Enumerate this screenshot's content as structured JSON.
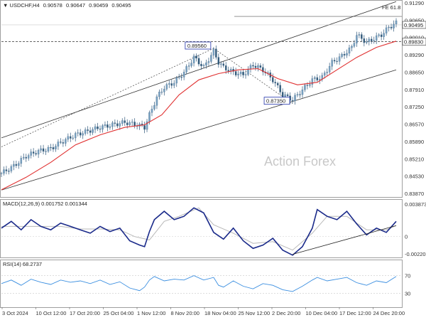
{
  "chart_data": [
    {
      "type": "candlestick",
      "symbol_timeframe": "USDCHF,H4",
      "ohlc_header": [
        "0.90578",
        "0.90647",
        "0.90459",
        "0.90495"
      ],
      "watermark": "Action Forex",
      "ylim": [
        0.8367,
        0.9141
      ],
      "y_ticks": [
        "0.91290",
        "0.90650",
        "0.90010",
        "0.89290",
        "0.88650",
        "0.87910",
        "0.87250",
        "0.86570",
        "0.85890",
        "0.85210",
        "0.84530",
        "0.83870"
      ],
      "x_ticks": [
        "3 Oct 2024",
        "10 Oct 12:00",
        "17 Oct 20:00",
        "25 Oct 04:00",
        "1 Nov 12:00",
        "8 Nov 20:00",
        "18 Nov 04:00",
        "25 Nov 12:00",
        "2 Dec 20:00",
        "10 Dec 04:00",
        "17 Dec 12:00",
        "24 Dec 20:00"
      ],
      "current_price_tag": "0.90495",
      "level_tag": "0.89830",
      "level_value": 0.8983,
      "fib_label": "FE 61.8",
      "fib_value": 0.9084,
      "annotations": [
        {
          "label": "0.89560",
          "value": 0.8956,
          "x_index": 86
        },
        {
          "label": "0.87350",
          "value": 0.8735,
          "x_index": 118
        }
      ],
      "close_path": [
        [
          0,
          0.8456
        ],
        [
          5,
          0.8485
        ],
        [
          10,
          0.8525
        ],
        [
          15,
          0.8545
        ],
        [
          20,
          0.8555
        ],
        [
          25,
          0.8585
        ],
        [
          30,
          0.861
        ],
        [
          35,
          0.8625
        ],
        [
          40,
          0.864
        ],
        [
          45,
          0.865
        ],
        [
          50,
          0.866
        ],
        [
          55,
          0.865
        ],
        [
          58,
          0.864
        ],
        [
          60,
          0.869
        ],
        [
          63,
          0.876
        ],
        [
          66,
          0.88
        ],
        [
          70,
          0.882
        ],
        [
          74,
          0.886
        ],
        [
          78,
          0.892
        ],
        [
          82,
          0.888
        ],
        [
          86,
          0.8945
        ],
        [
          88,
          0.89
        ],
        [
          90,
          0.888
        ],
        [
          94,
          0.886
        ],
        [
          98,
          0.885
        ],
        [
          102,
          0.889
        ],
        [
          106,
          0.887
        ],
        [
          110,
          0.883
        ],
        [
          114,
          0.877
        ],
        [
          118,
          0.875
        ],
        [
          122,
          0.879
        ],
        [
          126,
          0.883
        ],
        [
          130,
          0.884
        ],
        [
          134,
          0.89
        ],
        [
          138,
          0.8925
        ],
        [
          142,
          0.896
        ],
        [
          144,
          0.901
        ],
        [
          146,
          0.8995
        ],
        [
          148,
          0.898
        ],
        [
          150,
          0.899
        ],
        [
          154,
          0.901
        ],
        [
          157,
          0.904
        ],
        [
          160,
          0.9058
        ]
      ],
      "moving_average_path": [
        [
          0,
          0.839
        ],
        [
          10,
          0.844
        ],
        [
          20,
          0.85
        ],
        [
          30,
          0.857
        ],
        [
          40,
          0.861
        ],
        [
          50,
          0.864
        ],
        [
          58,
          0.865
        ],
        [
          65,
          0.869
        ],
        [
          72,
          0.877
        ],
        [
          80,
          0.883
        ],
        [
          88,
          0.8855
        ],
        [
          96,
          0.887
        ],
        [
          104,
          0.8875
        ],
        [
          112,
          0.8835
        ],
        [
          120,
          0.881
        ],
        [
          128,
          0.882
        ],
        [
          136,
          0.887
        ],
        [
          144,
          0.892
        ],
        [
          152,
          0.896
        ],
        [
          160,
          0.8985
        ]
      ],
      "channel_upper": [
        [
          0,
          0.8598
        ],
        [
          160,
          0.9143
        ]
      ],
      "channel_lower": [
        [
          0,
          0.8389
        ],
        [
          160,
          0.887
        ]
      ],
      "dashed_line": [
        [
          0,
          0.8562
        ],
        [
          86,
          0.8956
        ],
        [
          118,
          0.8735
        ]
      ]
    },
    {
      "type": "line",
      "title": "MACD(12,26,9) 0.001752 0.001344",
      "ylim": [
        -0.0023,
        0.0041
      ],
      "y_ticks": [
        "0.003873",
        "0",
        "-0.002201"
      ],
      "series": [
        {
          "name": "MACD",
          "points": [
            [
              0,
              0.001
            ],
            [
              4,
              0.0018
            ],
            [
              8,
              0.0008
            ],
            [
              12,
              0.002
            ],
            [
              16,
              0.0012
            ],
            [
              20,
              0.0008
            ],
            [
              24,
              0.0016
            ],
            [
              28,
              0.0012
            ],
            [
              32,
              0.0008
            ],
            [
              36,
              0.0004
            ],
            [
              40,
              0.0012
            ],
            [
              44,
              0.0006
            ],
            [
              48,
              0.001
            ],
            [
              52,
              -0.0005
            ],
            [
              56,
              -0.001
            ],
            [
              58,
              -0.0012
            ],
            [
              60,
              0.0006
            ],
            [
              62,
              0.002
            ],
            [
              66,
              0.003
            ],
            [
              70,
              0.002
            ],
            [
              74,
              0.0024
            ],
            [
              78,
              0.0034
            ],
            [
              82,
              0.0028
            ],
            [
              86,
              0.0005
            ],
            [
              90,
              -0.0003
            ],
            [
              94,
              0.001
            ],
            [
              98,
              -0.0005
            ],
            [
              102,
              -0.0014
            ],
            [
              106,
              -0.001
            ],
            [
              110,
              -0.0002
            ],
            [
              114,
              -0.0016
            ],
            [
              118,
              -0.0022
            ],
            [
              122,
              -0.0012
            ],
            [
              126,
              0.001
            ],
            [
              128,
              0.0032
            ],
            [
              132,
              0.0024
            ],
            [
              136,
              0.002
            ],
            [
              140,
              0.003
            ],
            [
              144,
              0.0015
            ],
            [
              148,
              0.0002
            ],
            [
              152,
              0.001
            ],
            [
              156,
              0.0005
            ],
            [
              160,
              0.0018
            ]
          ]
        },
        {
          "name": "Signal",
          "points": [
            [
              0,
              0.0012
            ],
            [
              8,
              0.0012
            ],
            [
              16,
              0.0012
            ],
            [
              24,
              0.0012
            ],
            [
              32,
              0.0009
            ],
            [
              40,
              0.0009
            ],
            [
              48,
              0.0008
            ],
            [
              54,
              0.0
            ],
            [
              60,
              -0.0004
            ],
            [
              66,
              0.0018
            ],
            [
              72,
              0.0024
            ],
            [
              80,
              0.0034
            ],
            [
              86,
              0.0014
            ],
            [
              94,
              0.0004
            ],
            [
              102,
              -0.0008
            ],
            [
              110,
              -0.0006
            ],
            [
              118,
              -0.0016
            ],
            [
              126,
              0.0004
            ],
            [
              132,
              0.0024
            ],
            [
              140,
              0.0024
            ],
            [
              148,
              0.0008
            ],
            [
              156,
              0.0008
            ],
            [
              160,
              0.0013
            ]
          ]
        }
      ],
      "trendline": [
        [
          118,
          -0.0021
        ],
        [
          160,
          0.0013
        ]
      ]
    },
    {
      "type": "line",
      "title": "RSI(14) 68.2737",
      "ylim": [
        0,
        100
      ],
      "y_ticks": [
        "70",
        "30"
      ],
      "series": [
        {
          "name": "RSI",
          "points": [
            [
              0,
              52
            ],
            [
              4,
              60
            ],
            [
              8,
              48
            ],
            [
              12,
              62
            ],
            [
              16,
              55
            ],
            [
              20,
              50
            ],
            [
              24,
              60
            ],
            [
              28,
              55
            ],
            [
              32,
              58
            ],
            [
              36,
              52
            ],
            [
              40,
              60
            ],
            [
              44,
              50
            ],
            [
              48,
              56
            ],
            [
              52,
              42
            ],
            [
              56,
              36
            ],
            [
              58,
              44
            ],
            [
              60,
              60
            ],
            [
              62,
              68
            ],
            [
              66,
              58
            ],
            [
              70,
              62
            ],
            [
              74,
              60
            ],
            [
              78,
              70
            ],
            [
              82,
              60
            ],
            [
              86,
              66
            ],
            [
              88,
              48
            ],
            [
              90,
              44
            ],
            [
              94,
              58
            ],
            [
              98,
              46
            ],
            [
              102,
              40
            ],
            [
              106,
              52
            ],
            [
              110,
              48
            ],
            [
              114,
              38
            ],
            [
              118,
              34
            ],
            [
              122,
              46
            ],
            [
              126,
              60
            ],
            [
              128,
              66
            ],
            [
              132,
              58
            ],
            [
              136,
              62
            ],
            [
              140,
              66
            ],
            [
              144,
              54
            ],
            [
              148,
              48
            ],
            [
              152,
              58
            ],
            [
              156,
              54
            ],
            [
              160,
              68
            ]
          ]
        }
      ]
    }
  ]
}
